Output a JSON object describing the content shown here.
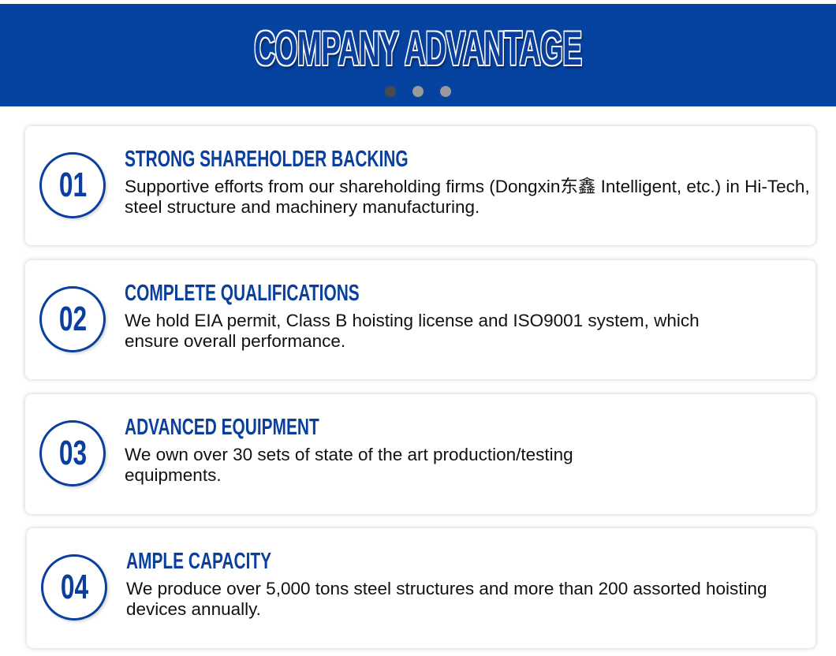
{
  "header": {
    "title": "COMPANY ADVANTAGE",
    "carousel": {
      "dots": 3,
      "active_index": 0
    },
    "background_color": "#0642a0"
  },
  "accent_color": "#0a3f9e",
  "items": [
    {
      "number": "01",
      "title": "STRONG SHAREHOLDER BACKING",
      "text": "Supportive efforts from our shareholding firms (Dongxin东鑫 Intelligent, etc.) in Hi-Tech, steel structure and machinery manufacturing."
    },
    {
      "number": "02",
      "title": "COMPLETE QUALIFICATIONS",
      "text": "We hold EIA permit, Class B hoisting license and ISO9001 system, which ensure overall performance."
    },
    {
      "number": "03",
      "title": "ADVANCED EQUIPMENT",
      "text": "We own over 30 sets of state of the art production/testing equipments."
    },
    {
      "number": "04",
      "title": "AMPLE CAPACITY",
      "text": "We produce over 5,000 tons steel structures and more than 200 assorted hoisting devices annually."
    }
  ]
}
